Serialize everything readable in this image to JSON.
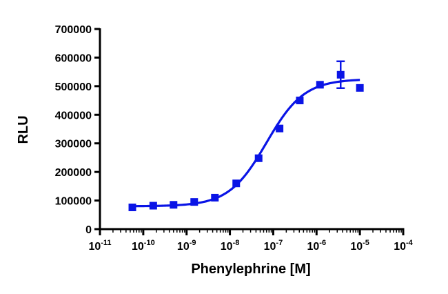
{
  "chart_data": {
    "type": "scatter",
    "xlabel": "Phenylephrine [M]",
    "ylabel": "RLU",
    "xscale": "log",
    "xlim": [
      1e-11,
      0.0001
    ],
    "ylim": [
      0,
      700000
    ],
    "grid": false,
    "legend": "none",
    "colors": {
      "series": "#0a14e6",
      "axis": "#000000"
    },
    "x_ticks": [
      {
        "value": 1e-11,
        "base": "10",
        "exp": "-11"
      },
      {
        "value": 1e-10,
        "base": "10",
        "exp": "-10"
      },
      {
        "value": 1e-09,
        "base": "10",
        "exp": "-9"
      },
      {
        "value": 1e-08,
        "base": "10",
        "exp": "-8"
      },
      {
        "value": 1e-07,
        "base": "10",
        "exp": "-7"
      },
      {
        "value": 1e-06,
        "base": "10",
        "exp": "-6"
      },
      {
        "value": 1e-05,
        "base": "10",
        "exp": "-5"
      },
      {
        "value": 0.0001,
        "base": "10",
        "exp": "-4"
      }
    ],
    "y_ticks": [
      {
        "value": 0,
        "label": "0"
      },
      {
        "value": 100000,
        "label": "100000"
      },
      {
        "value": 200000,
        "label": "200000"
      },
      {
        "value": 300000,
        "label": "300000"
      },
      {
        "value": 400000,
        "label": "400000"
      },
      {
        "value": 500000,
        "label": "500000"
      },
      {
        "value": 600000,
        "label": "600000"
      },
      {
        "value": 700000,
        "label": "700000"
      }
    ],
    "series": [
      {
        "marker": "square",
        "points": [
          {
            "x": 5.6e-11,
            "y": 76000
          },
          {
            "x": 1.7e-10,
            "y": 82000
          },
          {
            "x": 5e-10,
            "y": 85000
          },
          {
            "x": 1.5e-09,
            "y": 95000
          },
          {
            "x": 4.5e-09,
            "y": 110000
          },
          {
            "x": 1.4e-08,
            "y": 160000
          },
          {
            "x": 4.6e-08,
            "y": 248000
          },
          {
            "x": 1.4e-07,
            "y": 352000
          },
          {
            "x": 4.1e-07,
            "y": 450000
          },
          {
            "x": 1.2e-06,
            "y": 505000
          },
          {
            "x": 3.6e-06,
            "y": 540000,
            "yerr": 47000
          },
          {
            "x": 1e-05,
            "y": 494000
          }
        ],
        "fit": {
          "model": "four-parameter logistic",
          "bottom": 80000,
          "top": 525000,
          "ec50": 7e-08,
          "hill": 1.0,
          "x_range": [
            5.6e-11,
            1e-05
          ]
        }
      }
    ]
  }
}
